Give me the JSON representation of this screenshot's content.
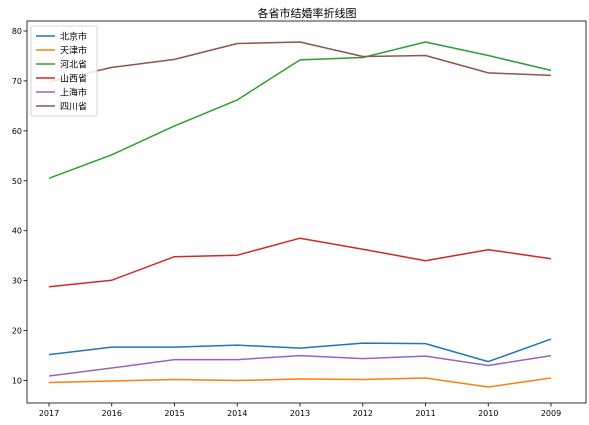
{
  "chart_data": {
    "type": "line",
    "title": "各省市结婚率折线图",
    "xlabel": "",
    "ylabel": "",
    "categories": [
      "2017",
      "2016",
      "2015",
      "2014",
      "2013",
      "2012",
      "2011",
      "2010",
      "2009"
    ],
    "ylim": [
      5.5,
      82
    ],
    "yticks": [
      10,
      20,
      30,
      40,
      50,
      60,
      70,
      80
    ],
    "grid": false,
    "legend_position": "top-left",
    "series": [
      {
        "name": "北京市",
        "color": "#1f77b4",
        "values": [
          15.2,
          16.7,
          16.7,
          17.1,
          16.5,
          17.5,
          17.4,
          13.8,
          18.3
        ]
      },
      {
        "name": "天津市",
        "color": "#ff7f0e",
        "values": [
          9.6,
          9.9,
          10.2,
          10.0,
          10.3,
          10.2,
          10.5,
          8.7,
          10.5
        ]
      },
      {
        "name": "河北省",
        "color": "#2ca02c",
        "values": [
          50.5,
          55.2,
          61.0,
          66.2,
          74.2,
          74.7,
          77.8,
          75.1,
          72.1
        ]
      },
      {
        "name": "山西省",
        "color": "#d62728",
        "values": [
          28.8,
          30.1,
          34.8,
          35.1,
          38.5,
          36.3,
          34.0,
          36.2,
          34.4
        ]
      },
      {
        "name": "上海市",
        "color": "#9467bd",
        "values": [
          10.9,
          12.5,
          14.2,
          14.2,
          15.0,
          14.4,
          14.9,
          13.0,
          15.0
        ]
      },
      {
        "name": "四川省",
        "color": "#8c564b",
        "values": [
          69.8,
          72.7,
          74.3,
          77.5,
          77.8,
          74.9,
          75.1,
          71.6,
          71.1
        ]
      }
    ]
  }
}
